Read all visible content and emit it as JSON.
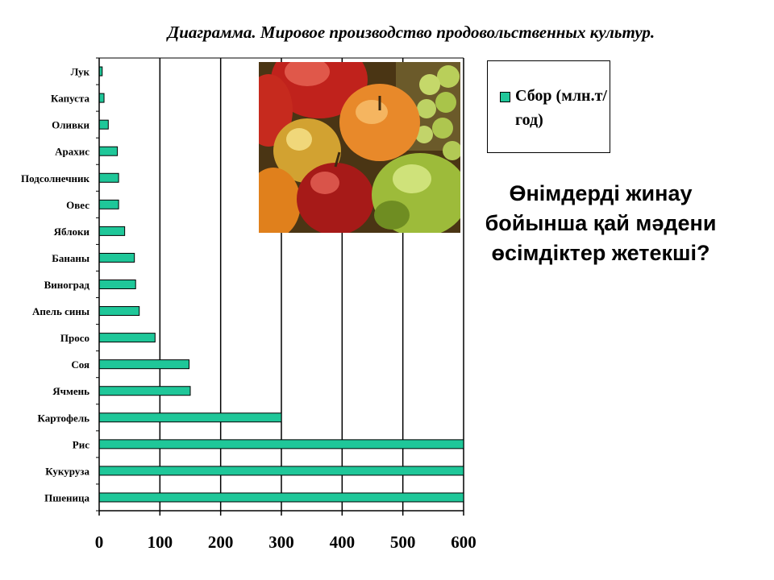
{
  "title": "Диаграмма. Мировое производство продовольственных культур.",
  "question": "Өнімдерді жинау бойынша қай мәдени өсімдіктер жетекші?",
  "photo": {
    "icon": "fruit-photo"
  },
  "colors": {
    "bar": "#1fc799",
    "frame": "#000000",
    "background": "#ffffff"
  },
  "chart_data": {
    "type": "bar",
    "orientation": "horizontal",
    "categories": [
      "Лук",
      "Капуста",
      "Оливки",
      "Арахис",
      "Подсолнечник",
      "Овес",
      "Яблоки",
      "Бананы",
      "Виноград",
      "Апельсины",
      "Просо",
      "Соя",
      "Ячмень",
      "Картофель",
      "Рис",
      "Кукуруза",
      "Пшеница"
    ],
    "category_labels": [
      "Лук",
      "Капуста",
      "Оливки",
      "Арахис",
      "Подсолнечник",
      "Овес",
      "Яблоки",
      "Бананы",
      "Виноград",
      "Апель сины",
      "Просо",
      "Соя",
      "Ячмень",
      "Картофель",
      "Рис",
      "Кукуруза",
      "Пшеница"
    ],
    "series": [
      {
        "name": "Сбор (млн.т/год)",
        "values": [
          5,
          8,
          15,
          30,
          32,
          32,
          42,
          58,
          60,
          66,
          92,
          148,
          150,
          300,
          600,
          600,
          600
        ]
      }
    ],
    "xlim": [
      0,
      600
    ],
    "xticks": [
      0,
      100,
      200,
      300,
      400,
      500,
      600
    ],
    "xlabel": "",
    "ylabel": "",
    "grid": "vertical",
    "legend_position": "top-right"
  }
}
